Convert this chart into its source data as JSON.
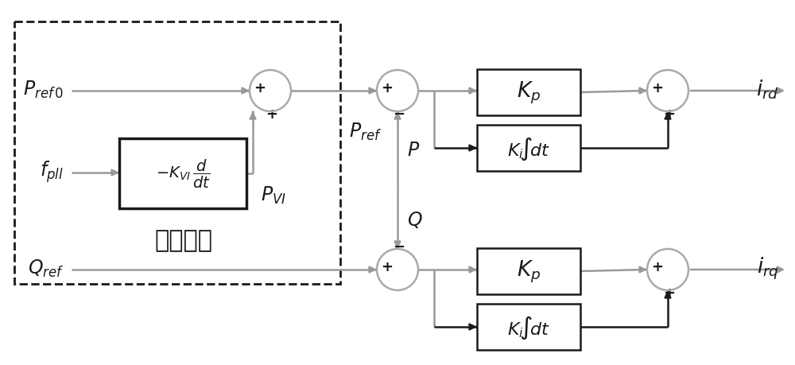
{
  "bg_color": "#ffffff",
  "line_color": "#999999",
  "black": "#1a1a1a",
  "circle_color": "#aaaaaa",
  "figsize": [
    10.0,
    4.6
  ],
  "dpi": 100
}
